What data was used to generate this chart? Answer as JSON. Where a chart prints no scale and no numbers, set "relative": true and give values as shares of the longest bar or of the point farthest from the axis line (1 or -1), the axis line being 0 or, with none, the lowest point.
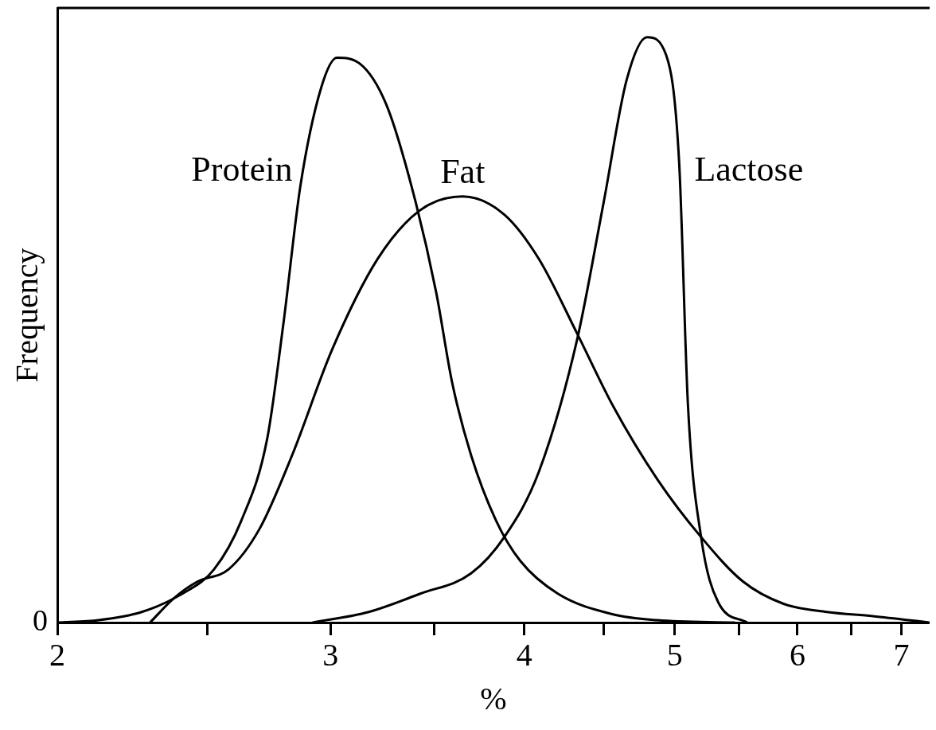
{
  "chart_data": {
    "type": "line",
    "relative": true,
    "xlabel": "%",
    "ylabel": "Frequency",
    "log": "x",
    "xlim": [
      2,
      7.3
    ],
    "xticks": [
      2,
      {
        "value": 2.5,
        "label": null
      },
      3,
      {
        "value": 3.5,
        "label": null
      },
      4,
      {
        "value": 4.5,
        "label": null
      },
      5,
      {
        "value": 5.5,
        "label": null
      },
      6,
      {
        "value": 6.5,
        "label": null
      },
      7
    ],
    "annotations": [
      "0"
    ],
    "grid": false,
    "legend": false,
    "marker": "none",
    "line_style": "solid",
    "series": [
      {
        "name": "Protein",
        "color": "#000000",
        "x": [
          2.0,
          2.126,
          2.267,
          2.407,
          2.524,
          2.628,
          2.731,
          2.797,
          2.869,
          2.959,
          3.029,
          3.133,
          3.258,
          3.383,
          3.509,
          3.593,
          3.696,
          3.836,
          3.977,
          4.206,
          4.563,
          4.875,
          5.467
        ],
        "values": [
          0,
          0.004,
          0.018,
          0.049,
          0.091,
          0.174,
          0.314,
          0.509,
          0.746,
          0.914,
          0.965,
          0.955,
          0.886,
          0.746,
          0.565,
          0.411,
          0.286,
          0.174,
          0.105,
          0.049,
          0.014,
          0.004,
          0
        ]
      },
      {
        "name": "Fat",
        "color": "#000000",
        "x": [
          2.295,
          2.379,
          2.463,
          2.579,
          2.7,
          2.834,
          3.008,
          3.217,
          3.425,
          3.65,
          3.883,
          4.088,
          4.324,
          4.563,
          4.875,
          5.2,
          5.534,
          5.877,
          6.267,
          6.71,
          7.3
        ],
        "values": [
          0,
          0.042,
          0.07,
          0.091,
          0.16,
          0.286,
          0.467,
          0.621,
          0.704,
          0.728,
          0.697,
          0.621,
          0.495,
          0.37,
          0.244,
          0.146,
          0.07,
          0.032,
          0.018,
          0.011,
          0
        ]
      },
      {
        "name": "Lactose",
        "color": "#000000",
        "x": [
          2.921,
          3.175,
          3.425,
          3.696,
          3.883,
          4.088,
          4.324,
          4.5,
          4.656,
          4.8,
          4.938,
          5.033,
          5.1,
          5.2,
          5.333,
          5.568
        ],
        "values": [
          0,
          0.018,
          0.049,
          0.084,
          0.146,
          0.258,
          0.481,
          0.718,
          0.927,
          1,
          0.969,
          0.788,
          0.37,
          0.146,
          0.035,
          0
        ]
      }
    ]
  }
}
